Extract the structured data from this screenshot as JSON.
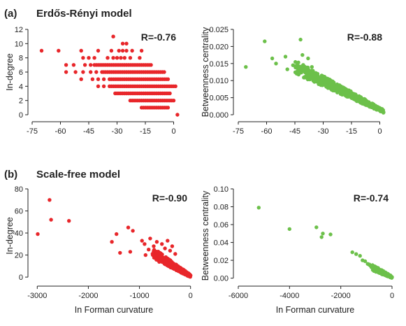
{
  "panels": [
    {
      "letter": "(a)",
      "title": "Erdős-Rényi model"
    },
    {
      "letter": "(b)",
      "title": "Scale-free model"
    }
  ],
  "chart_data": [
    {
      "type": "scatter",
      "panel": "(a)",
      "color": "#e8262a",
      "xlabel": "",
      "ylabel": "In-degree",
      "annotation": "R=-0.76",
      "xlim": [
        -75,
        5
      ],
      "ylim": [
        0,
        12
      ],
      "xticks": [
        -75,
        -60,
        -45,
        -30,
        -15,
        0
      ],
      "yticks": [
        0,
        2,
        4,
        6,
        8,
        10,
        12
      ],
      "xtick_labels": [
        "-75",
        "-60",
        "-45",
        "-30",
        "-15",
        "0"
      ],
      "ytick_labels": [
        "0",
        "2",
        "4",
        "6",
        "8",
        "10",
        "12"
      ],
      "rows": [
        {
          "y": 11,
          "x": [
            -32
          ]
        },
        {
          "y": 10,
          "x": [
            -27,
            -25
          ]
        },
        {
          "y": 9,
          "x": [
            -70,
            -61,
            -49,
            -40,
            -33,
            -29,
            -27,
            -25,
            -22,
            -17
          ]
        },
        {
          "y": 8,
          "x": [
            -48,
            -45,
            -42,
            -35,
            -32,
            -30,
            -28,
            -26,
            -23,
            -18
          ]
        },
        {
          "y": 7,
          "xmin": -42,
          "xmax": -12,
          "extra": [
            -57,
            -53,
            -47,
            -44
          ]
        },
        {
          "y": 6,
          "xmin": -38,
          "xmax": -5,
          "extra": [
            -57,
            -52,
            -48,
            -44,
            -41
          ]
        },
        {
          "y": 5,
          "xmin": -34,
          "xmax": -3,
          "extra": [
            -49,
            -43,
            -40,
            -37
          ]
        },
        {
          "y": 4,
          "xmin": -34,
          "xmax": 1,
          "extra": [
            -40,
            -37
          ]
        },
        {
          "y": 3,
          "xmin": -31,
          "xmax": -2,
          "extra": []
        },
        {
          "y": 2,
          "xmin": -23,
          "xmax": 0,
          "extra": []
        },
        {
          "y": 1,
          "xmin": -17,
          "xmax": -3,
          "extra": []
        },
        {
          "y": 0,
          "x": [
            2
          ]
        }
      ]
    },
    {
      "type": "scatter",
      "panel": "(a)",
      "color": "#6cc04a",
      "xlabel": "",
      "ylabel": "Betweenness centrality",
      "annotation": "R=-0.88",
      "xlim": [
        -75,
        5
      ],
      "ylim": [
        0,
        0.025
      ],
      "xticks": [
        -75,
        -60,
        -45,
        -30,
        -15,
        0
      ],
      "yticks": [
        0,
        0.005,
        0.01,
        0.015,
        0.02,
        0.025
      ],
      "xtick_labels": [
        "-75",
        "-60",
        "-45",
        "-30",
        "-15",
        "0"
      ],
      "ytick_labels": [
        "0.000",
        "0.005",
        "0.010",
        "0.015",
        "0.020",
        "0.025"
      ],
      "outliers": [
        {
          "x": -71,
          "y": 0.014
        },
        {
          "x": -61,
          "y": 0.0215
        },
        {
          "x": -57,
          "y": 0.0165
        },
        {
          "x": -55,
          "y": 0.015
        },
        {
          "x": -50,
          "y": 0.017
        },
        {
          "x": -49,
          "y": 0.0133
        },
        {
          "x": -46,
          "y": 0.0145
        },
        {
          "x": -42,
          "y": 0.022
        },
        {
          "x": -41,
          "y": 0.0175
        },
        {
          "x": -38,
          "y": 0.0165
        },
        {
          "x": -36,
          "y": 0.014
        },
        {
          "x": -33,
          "y": 0.012
        }
      ],
      "cluster": {
        "x_start": -45,
        "x_end": 2,
        "y_at_start": 0.014,
        "y_at_end": 0.001,
        "spread": 0.004,
        "count": 520
      }
    },
    {
      "type": "scatter",
      "panel": "(b)",
      "color": "#e8262a",
      "xlabel": "In Forman curvature",
      "ylabel": "In-degree",
      "annotation": "R=-0.90",
      "xlim": [
        -3100,
        100
      ],
      "ylim": [
        -5,
        80
      ],
      "xticks": [
        -3000,
        -2000,
        -1000,
        0
      ],
      "yticks": [
        0,
        20,
        40,
        60,
        80
      ],
      "xtick_labels": [
        "-3000",
        "-2000",
        "-1000",
        "0"
      ],
      "ytick_labels": [
        "0",
        "20",
        "40",
        "60",
        "80"
      ],
      "outliers": [
        {
          "x": -2990,
          "y": 39
        },
        {
          "x": -2760,
          "y": 70
        },
        {
          "x": -2730,
          "y": 52
        },
        {
          "x": -2380,
          "y": 51
        },
        {
          "x": -1540,
          "y": 32
        },
        {
          "x": -1450,
          "y": 39
        },
        {
          "x": -1380,
          "y": 22
        },
        {
          "x": -1220,
          "y": 45
        },
        {
          "x": -1180,
          "y": 23
        },
        {
          "x": -1130,
          "y": 42
        },
        {
          "x": -950,
          "y": 33
        },
        {
          "x": -900,
          "y": 30
        },
        {
          "x": -880,
          "y": 20
        },
        {
          "x": -820,
          "y": 25
        },
        {
          "x": -790,
          "y": 35
        },
        {
          "x": -720,
          "y": 28
        },
        {
          "x": -660,
          "y": 32
        },
        {
          "x": -600,
          "y": 22
        },
        {
          "x": -560,
          "y": 30
        },
        {
          "x": -500,
          "y": 26
        },
        {
          "x": -450,
          "y": 33
        },
        {
          "x": -400,
          "y": 24
        },
        {
          "x": -360,
          "y": 28
        },
        {
          "x": -300,
          "y": 21
        }
      ],
      "cluster": {
        "x_start": -750,
        "x_end": 0,
        "y_at_start": 22,
        "y_at_end": 1,
        "spread": 10,
        "count": 260
      }
    },
    {
      "type": "scatter",
      "panel": "(b)",
      "color": "#6cc04a",
      "xlabel": "In Forman curvature",
      "ylabel": "Betweenness centrality",
      "annotation": "R=-0.74",
      "xlim": [
        -6000,
        300
      ],
      "ylim": [
        -0.005,
        0.1
      ],
      "xticks": [
        -6000,
        -4000,
        -2000,
        0
      ],
      "yticks": [
        0,
        0.02,
        0.04,
        0.06,
        0.08,
        0.1
      ],
      "xtick_labels": [
        "-6000",
        "-4000",
        "-2000",
        "0"
      ],
      "ytick_labels": [
        "0.00",
        "0.02",
        "0.04",
        "0.06",
        "0.08",
        "0.10"
      ],
      "outliers": [
        {
          "x": -5200,
          "y": 0.079
        },
        {
          "x": -4000,
          "y": 0.055
        },
        {
          "x": -2950,
          "y": 0.057
        },
        {
          "x": -2750,
          "y": 0.046
        },
        {
          "x": -2700,
          "y": 0.05
        },
        {
          "x": -2400,
          "y": 0.049
        },
        {
          "x": -1550,
          "y": 0.029
        },
        {
          "x": -1400,
          "y": 0.027
        },
        {
          "x": -1250,
          "y": 0.025
        },
        {
          "x": -1150,
          "y": 0.02
        },
        {
          "x": -1050,
          "y": 0.019
        },
        {
          "x": -950,
          "y": 0.016
        }
      ],
      "cluster": {
        "x_start": -900,
        "x_end": 0,
        "y_at_start": 0.014,
        "y_at_end": 0.001,
        "spread": 0.008,
        "count": 150
      }
    }
  ]
}
